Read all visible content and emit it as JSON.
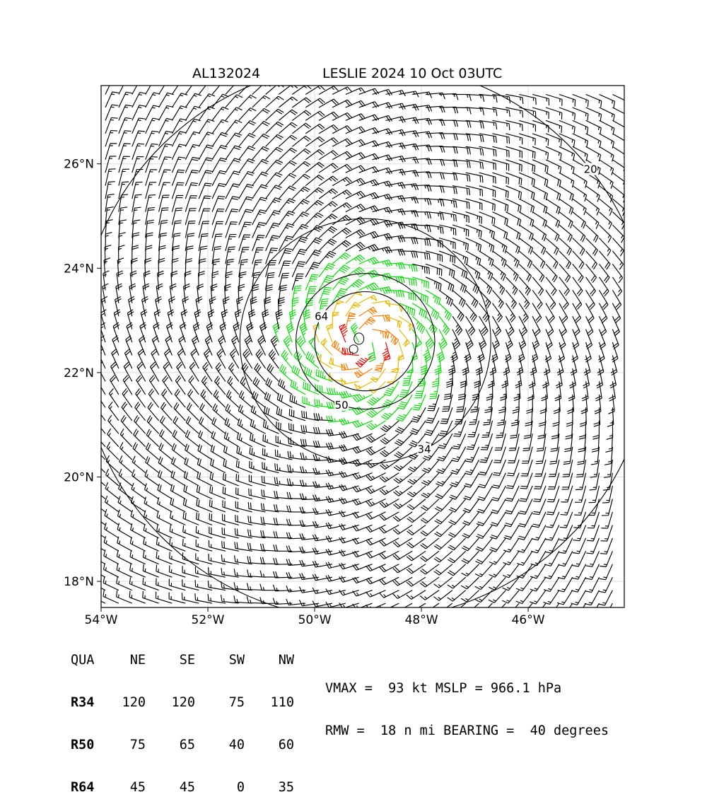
{
  "header": {
    "storm_id": "AL132024",
    "title": "LESLIE 2024 10 Oct 03UTC"
  },
  "chart_data": {
    "type": "wind-barb-map",
    "xlim": [
      -54.0,
      -44.2
    ],
    "ylim": [
      17.5,
      27.5
    ],
    "x_ticks": [
      {
        "value": -54,
        "label": "54°W"
      },
      {
        "value": -52,
        "label": "52°W"
      },
      {
        "value": -50,
        "label": "50°W"
      },
      {
        "value": -48,
        "label": "48°W"
      },
      {
        "value": -46,
        "label": "46°W"
      }
    ],
    "y_ticks": [
      {
        "value": 18,
        "label": "18°N"
      },
      {
        "value": 20,
        "label": "20°N"
      },
      {
        "value": 22,
        "label": "22°N"
      },
      {
        "value": 24,
        "label": "24°N"
      },
      {
        "value": 26,
        "label": "26°N"
      }
    ],
    "grid": true,
    "center": {
      "lon": -49.05,
      "lat": 22.6
    },
    "contours": [
      {
        "level": 20,
        "label": "20",
        "radius_deg": 5.35
      },
      {
        "level": 34,
        "label": "34",
        "radius_deg": 2.35
      },
      {
        "level": 50,
        "label": "50",
        "radius_deg": 1.3
      },
      {
        "level": 64,
        "label": "64",
        "radius_deg": 0.95
      }
    ],
    "wind_colors": {
      "below_34": "#000000",
      "r34": "#00dd00",
      "r50": "#e8b800",
      "r64": "#ff7700",
      "r83": "#ee0000"
    },
    "table": {
      "columns": [
        "QUA",
        "NE",
        "SE",
        "SW",
        "NW"
      ],
      "rows": [
        {
          "label": "R34",
          "values": [
            "120",
            "120",
            "75",
            "110"
          ]
        },
        {
          "label": "R50",
          "values": [
            "75",
            "65",
            "40",
            "60"
          ]
        },
        {
          "label": "R64",
          "values": [
            "45",
            "45",
            "0",
            "35"
          ]
        }
      ]
    },
    "summary": {
      "line1": "VMAX =  93 kt MSLP = 966.1 hPa",
      "line2": "RMW =  18 n mi BEARING =  40 degrees"
    }
  }
}
